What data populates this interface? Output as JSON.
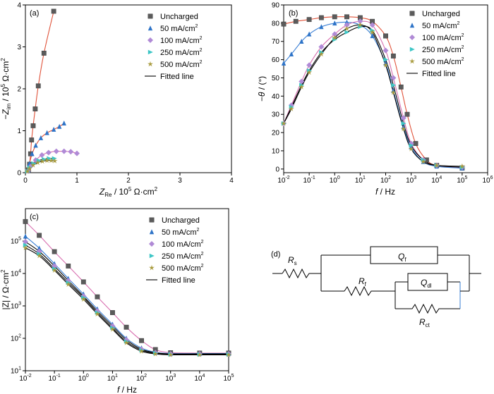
{
  "colors": {
    "Uncharged": "#5b5b5b",
    "50 mA/cm2": "#2e74c8",
    "100 mA/cm2": "#b08ad6",
    "250 mA/cm2": "#3ec6c6",
    "500 mA/cm2": "#a89a3c",
    "fit": "#000000",
    "fit_colored": "#e0533a",
    "wire": "#000000",
    "accent": "#3a7fd5"
  },
  "legend": {
    "entries": [
      "Uncharged",
      "50 mA/cm",
      "100 mA/cm",
      "250 mA/cm",
      "500 mA/cm",
      "Fitted line"
    ],
    "sup": "2"
  },
  "chart_data": [
    {
      "id": "a",
      "panel_label": "(a)",
      "type": "scatter",
      "xlabel": "Z",
      "xlabel_sub": "Re",
      "xlabel_rest": " / 10",
      "xlabel_exp": "5",
      "xlabel_unit": " Ω·cm",
      "xlabel_unit_sup": "2",
      "ylabel": "−Z",
      "ylabel_sub": "im",
      "ylabel_rest": " / 10",
      "ylabel_exp": "5",
      "ylabel_unit": " Ω·cm",
      "ylabel_unit_sup": "2",
      "xlim": [
        0,
        4
      ],
      "ylim": [
        0,
        4
      ],
      "xticks": [
        "0",
        "1",
        "2",
        "3",
        "4"
      ],
      "yticks": [
        "0",
        "1",
        "2",
        "3",
        "4"
      ],
      "series": [
        {
          "name": "Uncharged",
          "points": [
            [
              0.06,
              0.07
            ],
            [
              0.08,
              0.2
            ],
            [
              0.1,
              0.45
            ],
            [
              0.12,
              0.78
            ],
            [
              0.15,
              1.12
            ],
            [
              0.19,
              1.52
            ],
            [
              0.25,
              2.07
            ],
            [
              0.36,
              2.85
            ],
            [
              0.55,
              3.85
            ]
          ]
        },
        {
          "name": "50 mA/cm2",
          "points": [
            [
              0.05,
              0.05
            ],
            [
              0.08,
              0.22
            ],
            [
              0.13,
              0.45
            ],
            [
              0.2,
              0.65
            ],
            [
              0.3,
              0.83
            ],
            [
              0.42,
              0.95
            ],
            [
              0.55,
              1.03
            ],
            [
              0.66,
              1.1
            ],
            [
              0.75,
              1.18
            ]
          ]
        },
        {
          "name": "100 mA/cm2",
          "points": [
            [
              0.05,
              0.04
            ],
            [
              0.1,
              0.15
            ],
            [
              0.2,
              0.3
            ],
            [
              0.32,
              0.42
            ],
            [
              0.45,
              0.48
            ],
            [
              0.6,
              0.51
            ],
            [
              0.75,
              0.51
            ],
            [
              0.88,
              0.5
            ],
            [
              1.0,
              0.46
            ]
          ]
        },
        {
          "name": "250 mA/cm2",
          "points": [
            [
              0.04,
              0.03
            ],
            [
              0.08,
              0.12
            ],
            [
              0.16,
              0.22
            ],
            [
              0.26,
              0.29
            ],
            [
              0.36,
              0.32
            ],
            [
              0.46,
              0.34
            ],
            [
              0.56,
              0.34
            ]
          ]
        },
        {
          "name": "500 mA/cm2",
          "points": [
            [
              0.04,
              0.03
            ],
            [
              0.08,
              0.1
            ],
            [
              0.15,
              0.18
            ],
            [
              0.24,
              0.24
            ],
            [
              0.33,
              0.27
            ],
            [
              0.42,
              0.29
            ],
            [
              0.5,
              0.29
            ],
            [
              0.57,
              0.28
            ]
          ]
        }
      ]
    },
    {
      "id": "b",
      "panel_label": "(b)",
      "type": "scatter",
      "xscale": "log",
      "xlabel": "f",
      "xlabel_rest": " / Hz",
      "ylabel": "−θ",
      "ylabel_rest": " / (°)",
      "xlim": [
        0.01,
        1000000
      ],
      "ylim": [
        -2,
        90
      ],
      "xticks": [
        "10-2",
        "10-1",
        "100",
        "101",
        "102",
        "103",
        "104",
        "105",
        "106"
      ],
      "yticks": [
        "0",
        "10",
        "20",
        "30",
        "40",
        "50",
        "60",
        "70",
        "80",
        "90"
      ],
      "series": [
        {
          "name": "Uncharged",
          "points": [
            [
              0.01,
              79.5
            ],
            [
              0.03,
              81
            ],
            [
              0.1,
              82
            ],
            [
              0.3,
              83
            ],
            [
              1,
              83.5
            ],
            [
              3,
              83.5
            ],
            [
              10,
              83
            ],
            [
              30,
              81
            ],
            [
              100,
              73
            ],
            [
              200,
              62
            ],
            [
              400,
              45
            ],
            [
              700,
              30
            ],
            [
              1500,
              14
            ],
            [
              4000,
              5
            ],
            [
              10000,
              2
            ],
            [
              100000,
              0.5
            ]
          ]
        },
        {
          "name": "50 mA/cm2",
          "points": [
            [
              0.01,
              58
            ],
            [
              0.02,
              63
            ],
            [
              0.05,
              70
            ],
            [
              0.1,
              74
            ],
            [
              0.3,
              78
            ],
            [
              1,
              80
            ],
            [
              3,
              80.5
            ],
            [
              10,
              79
            ],
            [
              30,
              73
            ],
            [
              100,
              58
            ],
            [
              200,
              43
            ],
            [
              500,
              23
            ],
            [
              1000,
              12
            ],
            [
              3000,
              4
            ],
            [
              10000,
              1.5
            ],
            [
              100000,
              0.5
            ]
          ]
        },
        {
          "name": "100 mA/cm2",
          "points": [
            [
              0.01,
              25
            ],
            [
              0.02,
              35
            ],
            [
              0.05,
              48
            ],
            [
              0.1,
              57
            ],
            [
              0.3,
              67
            ],
            [
              1,
              74
            ],
            [
              3,
              79
            ],
            [
              10,
              81
            ],
            [
              30,
              79
            ],
            [
              100,
              65
            ],
            [
              200,
              50
            ],
            [
              500,
              28
            ],
            [
              1000,
              14
            ],
            [
              3000,
              5
            ],
            [
              10000,
              2
            ],
            [
              100000,
              1
            ]
          ]
        },
        {
          "name": "250 mA/cm2",
          "points": [
            [
              0.01,
              25
            ],
            [
              0.02,
              34
            ],
            [
              0.05,
              46
            ],
            [
              0.1,
              54
            ],
            [
              0.3,
              64
            ],
            [
              1,
              71
            ],
            [
              3,
              75
            ],
            [
              10,
              78
            ],
            [
              30,
              76
            ],
            [
              100,
              60
            ],
            [
              200,
              46
            ],
            [
              500,
              25
            ],
            [
              1000,
              13
            ],
            [
              3000,
              5
            ],
            [
              10000,
              2
            ],
            [
              100000,
              1
            ]
          ]
        },
        {
          "name": "500 mA/cm2",
          "points": [
            [
              0.01,
              25
            ],
            [
              0.02,
              33
            ],
            [
              0.05,
              45
            ],
            [
              0.1,
              53
            ],
            [
              0.3,
              63
            ],
            [
              1,
              72
            ],
            [
              3,
              77
            ],
            [
              10,
              79
            ],
            [
              30,
              75
            ],
            [
              100,
              57
            ],
            [
              200,
              42
            ],
            [
              500,
              22
            ],
            [
              1000,
              11
            ],
            [
              3000,
              4
            ],
            [
              10000,
              2
            ],
            [
              100000,
              1.5
            ]
          ]
        }
      ]
    },
    {
      "id": "c",
      "panel_label": "(c)",
      "type": "scatter",
      "xscale": "log",
      "yscale": "log",
      "xlabel": "f",
      "xlabel_rest": " / Hz",
      "ylabel": "|Z| / Ω·cm",
      "ylabel_sup": "2",
      "xlim": [
        0.01,
        100000
      ],
      "ylim": [
        10,
        1000000
      ],
      "xticks": [
        "10-2",
        "10-1",
        "100",
        "101",
        "102",
        "103",
        "104",
        "105"
      ],
      "yticks": [
        "101",
        "102",
        "103",
        "104",
        "105"
      ],
      "series": [
        {
          "name": "Uncharged",
          "points": [
            [
              0.01,
              400000
            ],
            [
              0.03,
              150000
            ],
            [
              0.1,
              47000
            ],
            [
              0.3,
              17000
            ],
            [
              1,
              5500
            ],
            [
              3,
              1900
            ],
            [
              10,
              620
            ],
            [
              30,
              220
            ],
            [
              100,
              85
            ],
            [
              300,
              45
            ],
            [
              1000,
              36
            ],
            [
              10000,
              35
            ],
            [
              100000,
              35
            ]
          ]
        },
        {
          "name": "50 mA/cm2",
          "points": [
            [
              0.01,
              140000
            ],
            [
              0.03,
              60000
            ],
            [
              0.1,
              20000
            ],
            [
              0.3,
              7000
            ],
            [
              1,
              2300
            ],
            [
              3,
              800
            ],
            [
              10,
              270
            ],
            [
              30,
              100
            ],
            [
              100,
              50
            ],
            [
              300,
              37
            ],
            [
              1000,
              34
            ],
            [
              10000,
              34
            ],
            [
              100000,
              34
            ]
          ]
        },
        {
          "name": "100 mA/cm2",
          "points": [
            [
              0.01,
              95000
            ],
            [
              0.03,
              48000
            ],
            [
              0.1,
              17000
            ],
            [
              0.3,
              6000
            ],
            [
              1,
              2000
            ],
            [
              3,
              700
            ],
            [
              10,
              240
            ],
            [
              30,
              90
            ],
            [
              100,
              46
            ],
            [
              300,
              36
            ],
            [
              1000,
              33
            ],
            [
              10000,
              33
            ],
            [
              100000,
              33
            ]
          ]
        },
        {
          "name": "250 mA/cm2",
          "points": [
            [
              0.01,
              75000
            ],
            [
              0.03,
              40000
            ],
            [
              0.1,
              14000
            ],
            [
              0.3,
              5200
            ],
            [
              1,
              1800
            ],
            [
              3,
              620
            ],
            [
              10,
              210
            ],
            [
              30,
              80
            ],
            [
              100,
              43
            ],
            [
              300,
              35
            ],
            [
              1000,
              32
            ],
            [
              10000,
              32
            ],
            [
              100000,
              32
            ]
          ]
        },
        {
          "name": "500 mA/cm2",
          "points": [
            [
              0.01,
              62000
            ],
            [
              0.03,
              35000
            ],
            [
              0.1,
              12500
            ],
            [
              0.3,
              4600
            ],
            [
              1,
              1600
            ],
            [
              3,
              560
            ],
            [
              10,
              190
            ],
            [
              30,
              73
            ],
            [
              100,
              40
            ],
            [
              300,
              33
            ],
            [
              1000,
              31
            ],
            [
              10000,
              31
            ],
            [
              100000,
              31
            ]
          ]
        }
      ]
    }
  ],
  "circuit": {
    "panel_label": "(d)",
    "labels": {
      "Rs": "R",
      "Rs_sub": "s",
      "Qf": "Q",
      "Qf_sub": "f",
      "Rf": "R",
      "Rf_sub": "f",
      "Qdl": "Q",
      "Qdl_sub": "dl",
      "Rct": "R",
      "Rct_sub": "ct"
    }
  }
}
